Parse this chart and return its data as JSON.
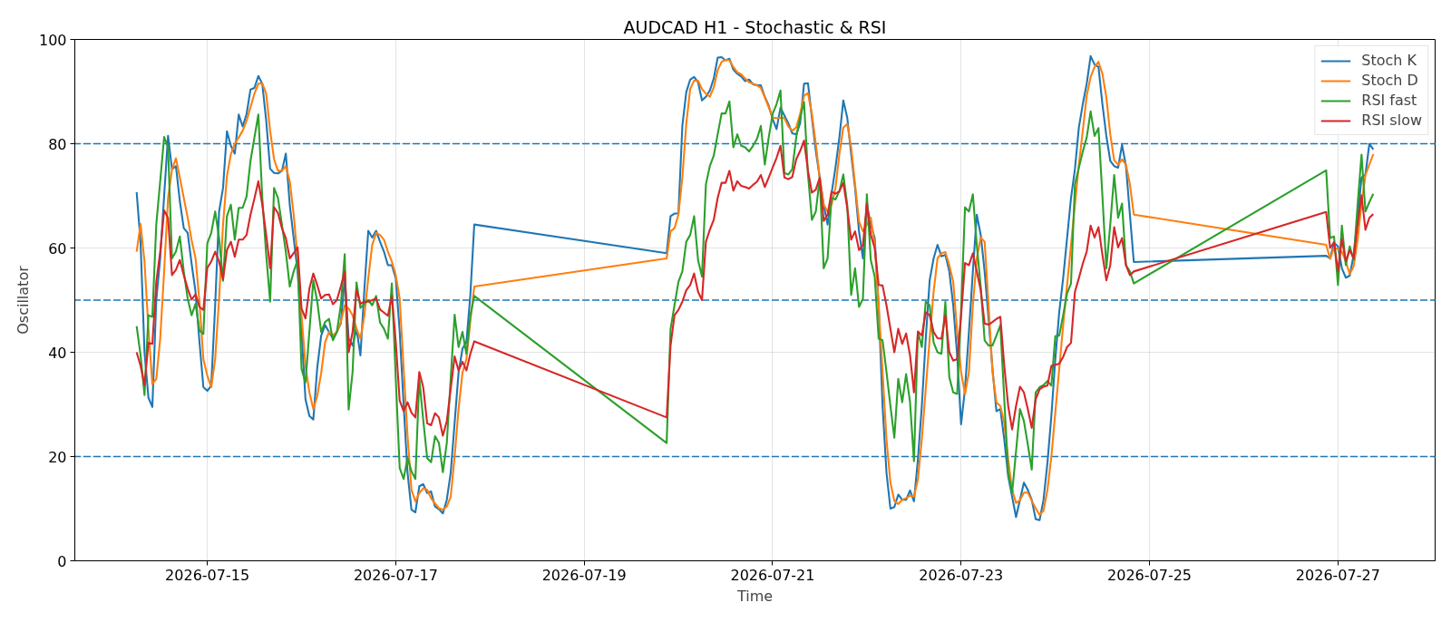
{
  "chart_data": {
    "type": "line",
    "title": "AUDCAD H1 - Stochastic & RSI",
    "xlabel": "Time",
    "ylabel": "Oscillator",
    "x": [
      "2026-07-14T06:00",
      "2026-07-14T07:00",
      "2026-07-14T08:00",
      "2026-07-14T09:00",
      "2026-07-14T10:00",
      "2026-07-14T11:00",
      "2026-07-14T12:00",
      "2026-07-14T13:00",
      "2026-07-14T14:00",
      "2026-07-14T15:00",
      "2026-07-14T16:00",
      "2026-07-14T17:00",
      "2026-07-14T18:00",
      "2026-07-14T19:00",
      "2026-07-14T20:00",
      "2026-07-14T21:00",
      "2026-07-14T22:00",
      "2026-07-14T23:00",
      "2026-07-15T00:00",
      "2026-07-15T01:00",
      "2026-07-15T02:00",
      "2026-07-15T03:00",
      "2026-07-15T04:00",
      "2026-07-15T05:00",
      "2026-07-15T06:00",
      "2026-07-15T07:00",
      "2026-07-15T08:00",
      "2026-07-15T09:00",
      "2026-07-15T10:00",
      "2026-07-15T11:00",
      "2026-07-15T12:00",
      "2026-07-15T13:00",
      "2026-07-15T14:00",
      "2026-07-15T15:00",
      "2026-07-15T16:00",
      "2026-07-15T17:00",
      "2026-07-15T18:00",
      "2026-07-15T19:00",
      "2026-07-15T20:00",
      "2026-07-15T21:00",
      "2026-07-15T22:00",
      "2026-07-15T23:00",
      "2026-07-16T00:00",
      "2026-07-16T01:00",
      "2026-07-16T02:00",
      "2026-07-16T03:00",
      "2026-07-16T04:00",
      "2026-07-16T05:00",
      "2026-07-16T06:00",
      "2026-07-16T07:00",
      "2026-07-16T08:00",
      "2026-07-16T09:00",
      "2026-07-16T10:00",
      "2026-07-16T11:00",
      "2026-07-16T12:00",
      "2026-07-16T13:00",
      "2026-07-16T14:00",
      "2026-07-16T15:00",
      "2026-07-16T16:00",
      "2026-07-16T17:00",
      "2026-07-16T18:00",
      "2026-07-16T19:00",
      "2026-07-16T20:00",
      "2026-07-16T21:00",
      "2026-07-16T22:00",
      "2026-07-16T23:00",
      "2026-07-17T00:00",
      "2026-07-17T01:00",
      "2026-07-17T02:00",
      "2026-07-17T03:00",
      "2026-07-17T04:00",
      "2026-07-17T05:00",
      "2026-07-17T06:00",
      "2026-07-17T07:00",
      "2026-07-17T08:00",
      "2026-07-17T09:00",
      "2026-07-17T10:00",
      "2026-07-17T11:00",
      "2026-07-17T12:00",
      "2026-07-17T13:00",
      "2026-07-17T14:00",
      "2026-07-17T15:00",
      "2026-07-17T16:00",
      "2026-07-17T17:00",
      "2026-07-17T18:00",
      "2026-07-17T19:00",
      "2026-07-17T20:00",
      "2026-07-19T21:00",
      "2026-07-19T22:00",
      "2026-07-19T23:00",
      "2026-07-20T00:00",
      "2026-07-20T01:00",
      "2026-07-20T02:00",
      "2026-07-20T03:00",
      "2026-07-20T04:00",
      "2026-07-20T05:00",
      "2026-07-20T06:00",
      "2026-07-20T07:00",
      "2026-07-20T08:00",
      "2026-07-20T09:00",
      "2026-07-20T10:00",
      "2026-07-20T11:00",
      "2026-07-20T12:00",
      "2026-07-20T13:00",
      "2026-07-20T14:00",
      "2026-07-20T15:00",
      "2026-07-20T16:00",
      "2026-07-20T17:00",
      "2026-07-20T18:00",
      "2026-07-20T19:00",
      "2026-07-20T20:00",
      "2026-07-20T21:00",
      "2026-07-20T22:00",
      "2026-07-20T23:00",
      "2026-07-21T00:00",
      "2026-07-21T01:00",
      "2026-07-21T02:00",
      "2026-07-21T03:00",
      "2026-07-21T04:00",
      "2026-07-21T05:00",
      "2026-07-21T06:00",
      "2026-07-21T07:00",
      "2026-07-21T08:00",
      "2026-07-21T09:00",
      "2026-07-21T10:00",
      "2026-07-21T11:00",
      "2026-07-21T12:00",
      "2026-07-21T13:00",
      "2026-07-21T14:00",
      "2026-07-21T15:00",
      "2026-07-21T16:00",
      "2026-07-21T17:00",
      "2026-07-21T18:00",
      "2026-07-21T19:00",
      "2026-07-21T20:00",
      "2026-07-21T21:00",
      "2026-07-21T22:00",
      "2026-07-21T23:00",
      "2026-07-22T00:00",
      "2026-07-22T01:00",
      "2026-07-22T02:00",
      "2026-07-22T03:00",
      "2026-07-22T04:00",
      "2026-07-22T05:00",
      "2026-07-22T06:00",
      "2026-07-22T07:00",
      "2026-07-22T08:00",
      "2026-07-22T09:00",
      "2026-07-22T10:00",
      "2026-07-22T11:00",
      "2026-07-22T12:00",
      "2026-07-22T13:00",
      "2026-07-22T14:00",
      "2026-07-22T15:00",
      "2026-07-22T16:00",
      "2026-07-22T17:00",
      "2026-07-22T18:00",
      "2026-07-22T19:00",
      "2026-07-22T20:00",
      "2026-07-22T21:00",
      "2026-07-22T22:00",
      "2026-07-22T23:00",
      "2026-07-23T00:00",
      "2026-07-23T01:00",
      "2026-07-23T02:00",
      "2026-07-23T03:00",
      "2026-07-23T04:00",
      "2026-07-23T05:00",
      "2026-07-23T06:00",
      "2026-07-23T07:00",
      "2026-07-23T08:00",
      "2026-07-23T09:00",
      "2026-07-23T10:00",
      "2026-07-23T11:00",
      "2026-07-23T12:00",
      "2026-07-23T13:00",
      "2026-07-23T14:00",
      "2026-07-23T15:00",
      "2026-07-23T16:00",
      "2026-07-23T17:00",
      "2026-07-23T18:00",
      "2026-07-23T19:00",
      "2026-07-23T20:00",
      "2026-07-23T21:00",
      "2026-07-23T22:00",
      "2026-07-23T23:00",
      "2026-07-24T00:00",
      "2026-07-24T01:00",
      "2026-07-24T02:00",
      "2026-07-24T03:00",
      "2026-07-24T04:00",
      "2026-07-24T05:00",
      "2026-07-24T06:00",
      "2026-07-24T07:00",
      "2026-07-24T08:00",
      "2026-07-24T09:00",
      "2026-07-24T10:00",
      "2026-07-24T11:00",
      "2026-07-24T12:00",
      "2026-07-24T13:00",
      "2026-07-24T14:00",
      "2026-07-24T15:00",
      "2026-07-24T16:00",
      "2026-07-24T17:00",
      "2026-07-24T18:00",
      "2026-07-24T19:00",
      "2026-07-24T20:00",
      "2026-07-26T21:00",
      "2026-07-26T22:00",
      "2026-07-26T23:00",
      "2026-07-27T00:00",
      "2026-07-27T01:00",
      "2026-07-27T02:00",
      "2026-07-27T03:00",
      "2026-07-27T04:00",
      "2026-07-27T05:00",
      "2026-07-27T06:00",
      "2026-07-27T07:00",
      "2026-07-27T08:00",
      "2026-07-27T09:00"
    ],
    "series": [
      {
        "name": "Stoch K",
        "color": "#1f77b4",
        "values": [
          70.7,
          61,
          40,
          31.3,
          29.5,
          50,
          58,
          70,
          81.5,
          75.1,
          75.7,
          69,
          63.8,
          62.9,
          57,
          51.6,
          42,
          33.3,
          32.6,
          33.6,
          49,
          67,
          71.5,
          82.4,
          79.6,
          78.1,
          85.6,
          83.3,
          85.7,
          90.4,
          90.7,
          93,
          91.5,
          84.4,
          75.2,
          74.4,
          74.3,
          74.8,
          78.1,
          68.3,
          61.9,
          55.5,
          44,
          31,
          27.8,
          27.1,
          37,
          43.2,
          45.2,
          43.9,
          42.6,
          43.9,
          45.5,
          54.2,
          42.6,
          41.3,
          44.5,
          39.4,
          52,
          63.3,
          62,
          63.3,
          61.2,
          59.3,
          56.7,
          56.7,
          54.2,
          44,
          30,
          16.9,
          9.8,
          9.3,
          14.3,
          14.7,
          13,
          13.3,
          10.4,
          9.9,
          9.1,
          11.7,
          16.9,
          26.5,
          36.1,
          40.7,
          42,
          51,
          64.5,
          59,
          66.1,
          66.6,
          66.6,
          83.4,
          89.9,
          92.3,
          92.8,
          91.8,
          88.3,
          89,
          90.2,
          92.5,
          96.5,
          96.6,
          96,
          96.3,
          94.2,
          93.4,
          92.9,
          92,
          92.3,
          91.4,
          91.2,
          91.2,
          89,
          87.3,
          84.7,
          82.8,
          86.9,
          85.4,
          83.9,
          82,
          81.8,
          83.9,
          91.5,
          91.6,
          85,
          78.6,
          73.5,
          68.3,
          64.5,
          70.4,
          75.4,
          81.2,
          88.3,
          85,
          78,
          71.5,
          63.2,
          58,
          68.3,
          64.5,
          61.9,
          49,
          29.7,
          16.9,
          10,
          10.3,
          12.7,
          11.7,
          11.7,
          13.5,
          11.4,
          19.4,
          29.7,
          42.6,
          53.8,
          58,
          60.6,
          58.4,
          58.7,
          55.5,
          49,
          39.4,
          26.2,
          33,
          43.9,
          55.5,
          66.4,
          62.5,
          55.5,
          46.4,
          36.8,
          28.7,
          29.1,
          23.3,
          16.2,
          12.3,
          8.4,
          11.7,
          15,
          13.6,
          11.7,
          8,
          7.8,
          11.7,
          18.8,
          27.8,
          38.7,
          47.7,
          54.2,
          61.9,
          69.6,
          75.1,
          83.1,
          87.6,
          91.5,
          96.8,
          95.2,
          94.7,
          87.6,
          81.5,
          76.7,
          75.7,
          75.4,
          79.8,
          75.7,
          66.4,
          57.3,
          58.5,
          58,
          61,
          60.3,
          56.1,
          54.3,
          54.7,
          58.7,
          65.8,
          73.5,
          74.1,
          80,
          78.9
        ]
      },
      {
        "name": "Stoch D",
        "color": "#ff7f0e",
        "values": [
          59.3,
          64.6,
          57.4,
          44.5,
          33.9,
          34.9,
          42.6,
          55.5,
          69.6,
          75,
          77.2,
          73.5,
          69.6,
          65.8,
          61.5,
          58,
          49.7,
          38.7,
          35.5,
          33.3,
          38.7,
          50.3,
          64.5,
          73.8,
          78,
          80,
          81.2,
          82.5,
          84.4,
          87,
          89.6,
          91.5,
          91.6,
          89.6,
          82.5,
          77,
          74.8,
          74.8,
          75.7,
          72.8,
          66.4,
          58,
          47.1,
          37.4,
          32.3,
          29.1,
          31.6,
          36,
          41.9,
          43.9,
          43.2,
          43.9,
          45.8,
          49,
          48.4,
          47.1,
          44.5,
          42.6,
          47,
          54.2,
          60.6,
          62.9,
          62.5,
          61.6,
          59.3,
          57.4,
          54.8,
          50.3,
          37,
          24,
          13.6,
          11.4,
          13,
          13.9,
          13.6,
          12,
          11,
          10.1,
          9.8,
          10.4,
          12.3,
          20,
          29.1,
          36.1,
          38.7,
          46,
          52.6,
          58,
          63.2,
          63.8,
          66.4,
          73.5,
          83.8,
          90.5,
          92.1,
          92.1,
          90.5,
          89.6,
          89,
          90.8,
          94.1,
          95.7,
          96.1,
          96,
          94.7,
          93.7,
          93.3,
          92.5,
          91.8,
          91.5,
          91.2,
          90.7,
          88.9,
          87,
          85,
          84.9,
          85,
          84.9,
          83.3,
          82.5,
          83.1,
          85.7,
          89.2,
          89.7,
          85.7,
          79.9,
          73.5,
          68.3,
          67,
          68.3,
          71.5,
          78,
          83.1,
          83.8,
          79.3,
          72.2,
          65.1,
          63.2,
          64.5,
          65.8,
          60.6,
          49,
          36.2,
          23.3,
          15,
          11.5,
          10.9,
          11.7,
          12,
          12.5,
          12.3,
          15.6,
          23.3,
          33,
          42.6,
          51.6,
          58,
          59,
          59.2,
          56.7,
          53.5,
          43.9,
          36.2,
          32,
          36.2,
          49,
          58,
          62,
          61.2,
          49,
          36.2,
          30.4,
          29.7,
          26.5,
          19.4,
          13.6,
          11.1,
          11.6,
          13.1,
          13.1,
          11.5,
          10.1,
          8.8,
          9.6,
          13.6,
          20,
          28.4,
          36.8,
          45.2,
          52.9,
          60.6,
          68.3,
          76,
          82.5,
          89.2,
          92.8,
          94.7,
          95.7,
          93.4,
          88.9,
          81.8,
          76.8,
          76,
          77,
          76,
          72.2,
          66.4,
          60.6,
          57.9,
          60.1,
          59.8,
          59.3,
          57.4,
          55,
          56.5,
          61.5,
          68.5,
          74,
          76,
          78
        ]
      },
      {
        "name": "RSI fast",
        "color": "#2ca02c",
        "values": [
          45,
          39.4,
          31.8,
          47.1,
          46.8,
          64.5,
          72.8,
          81.3,
          79.3,
          58,
          59.3,
          62.2,
          55.5,
          50.3,
          47.1,
          49.3,
          44.2,
          43.5,
          60.9,
          62.9,
          67,
          61.9,
          53.7,
          66.1,
          68.3,
          61.6,
          67.7,
          67.7,
          69.9,
          76.7,
          81.2,
          85.6,
          69.6,
          58.7,
          49.7,
          71.5,
          69.6,
          64.5,
          59.3,
          52.6,
          55.5,
          57.7,
          36.8,
          34.2,
          44,
          53.8,
          49.7,
          43.9,
          45.8,
          46.4,
          42.3,
          43.9,
          49,
          58.8,
          29,
          36.2,
          53.4,
          48.5,
          49.3,
          50,
          49,
          50.8,
          45.7,
          44.5,
          42.6,
          53.2,
          35,
          17.8,
          15.7,
          19.7,
          17.2,
          15.7,
          34.9,
          27,
          19.7,
          18.9,
          23.9,
          22.6,
          17,
          22.6,
          35,
          47.2,
          41,
          43.9,
          39.7,
          47,
          50.8,
          22.6,
          44.5,
          49,
          53.5,
          55.5,
          61.2,
          62.5,
          66.1,
          57.7,
          54.5,
          72.2,
          75.7,
          77.7,
          81.8,
          85.8,
          85.8,
          88.1,
          79.3,
          81.8,
          79.6,
          79.3,
          78.5,
          79.6,
          80.9,
          83.4,
          76,
          81.2,
          85.7,
          87.6,
          90.2,
          74.4,
          74.1,
          75.1,
          81.2,
          85,
          88,
          74.1,
          65.4,
          67,
          73.5,
          56.1,
          58,
          69.6,
          69.3,
          70.9,
          74.1,
          68.3,
          51,
          56.1,
          48.7,
          50.3,
          70.3,
          57.7,
          54.5,
          42.6,
          42.3,
          36.2,
          29.7,
          23.6,
          34.9,
          30.4,
          35.8,
          30.4,
          19.1,
          43.9,
          41,
          49.7,
          49,
          41.9,
          40,
          39.7,
          49.7,
          35.2,
          32.3,
          32,
          48,
          67.8,
          67,
          70.3,
          60.6,
          52.6,
          42.3,
          41.3,
          41.3,
          43.2,
          45.2,
          31,
          16.9,
          13,
          21,
          29.1,
          26.8,
          22.3,
          17.5,
          32.3,
          33.3,
          33.7,
          34.5,
          33.6,
          43.1,
          43.2,
          47.1,
          51.3,
          53.2,
          72.2,
          75.4,
          78.5,
          81.2,
          86.2,
          81.5,
          83,
          70,
          56.1,
          64.5,
          74,
          65.8,
          68.5,
          56.7,
          55.5,
          53.2,
          74.9,
          61.9,
          62.2,
          52.9,
          64.3,
          56.7,
          60.3,
          57.7,
          68.3,
          77.9,
          67,
          68.8,
          70.4
        ]
      },
      {
        "name": "RSI slow",
        "color": "#d62728",
        "values": [
          40,
          37.4,
          33.7,
          41.8,
          41.6,
          53.5,
          59.3,
          67.2,
          65.8,
          54.8,
          55.8,
          57.7,
          54.8,
          52.2,
          50.1,
          51.1,
          48.7,
          48.1,
          56.2,
          57.4,
          59.3,
          57.4,
          54,
          59.6,
          61.2,
          58.3,
          61.6,
          61.6,
          62.5,
          66.4,
          69.5,
          72.8,
          68.3,
          62.5,
          56.1,
          67.8,
          66.7,
          63.8,
          61.9,
          58,
          59,
          60.1,
          48.4,
          46.5,
          52.2,
          55.1,
          52.9,
          50.3,
          51,
          51.1,
          49.2,
          50,
          52.6,
          55.5,
          40,
          43.9,
          52,
          49.3,
          49.7,
          49.7,
          50,
          50.3,
          48.2,
          47.6,
          47,
          50.8,
          42,
          30.7,
          28.7,
          30.4,
          28.4,
          27.5,
          36.2,
          33.3,
          26.4,
          26,
          28.3,
          27.5,
          24,
          26.8,
          33,
          39.2,
          36.5,
          38.2,
          36.5,
          39.7,
          42.1,
          27.5,
          41.3,
          47.1,
          48.1,
          49.7,
          51.9,
          52.9,
          55.1,
          51.6,
          50,
          61.2,
          63.5,
          65.4,
          69.6,
          72.5,
          72.5,
          74.8,
          71,
          72.8,
          71.9,
          71.7,
          71.4,
          72.1,
          72.7,
          74,
          71.7,
          73.5,
          75.4,
          77.3,
          79.6,
          73.5,
          73.2,
          73.6,
          77,
          78.6,
          80.6,
          74.8,
          70.6,
          71.2,
          73.5,
          65.2,
          66.4,
          70.8,
          70.4,
          70.9,
          72.5,
          67.7,
          61.6,
          63.2,
          59.6,
          60.6,
          68.5,
          62.5,
          60,
          52.9,
          52.8,
          49,
          44.5,
          40,
          44.5,
          41.6,
          43.6,
          39.4,
          32.3,
          44,
          43.2,
          47.7,
          47.1,
          43.9,
          42.7,
          42.6,
          47.1,
          40,
          38.4,
          38.7,
          47,
          57.1,
          56.7,
          59,
          55.5,
          51.9,
          45.5,
          45.3,
          45.8,
          46.4,
          46.8,
          37.4,
          29.7,
          25.2,
          29.7,
          33.4,
          32.3,
          29.1,
          25.5,
          31,
          32.9,
          33.4,
          33.6,
          37.4,
          37.6,
          37.8,
          39.1,
          41,
          41.8,
          51.6,
          54.2,
          57,
          59.3,
          64.3,
          62,
          64,
          58.7,
          53.8,
          56.7,
          64,
          60.1,
          61.9,
          56.7,
          54.8,
          55.5,
          66.9,
          60,
          61.1,
          55.5,
          61.7,
          57.5,
          59.6,
          58,
          64.5,
          70.1,
          63.5,
          65.8,
          66.5
        ]
      }
    ],
    "xlim": [
      "2026-07-13T14:15",
      "2026-07-28T00:45"
    ],
    "ylim": [
      0,
      100
    ],
    "xticks": [
      "2026-07-15",
      "2026-07-17",
      "2026-07-19",
      "2026-07-21",
      "2026-07-23",
      "2026-07-25",
      "2026-07-27"
    ],
    "yticks": [
      0,
      20,
      40,
      60,
      80,
      100
    ],
    "ref_lines": [
      {
        "axis": "y",
        "value": 80,
        "color": "#1f77b4",
        "line_style": "dashed"
      },
      {
        "axis": "y",
        "value": 50,
        "color": "#1f77b4",
        "line_style": "dashed"
      },
      {
        "axis": "y",
        "value": 20,
        "color": "#1f77b4",
        "line_style": "dashed"
      }
    ],
    "grid": true,
    "legend": "top right"
  }
}
